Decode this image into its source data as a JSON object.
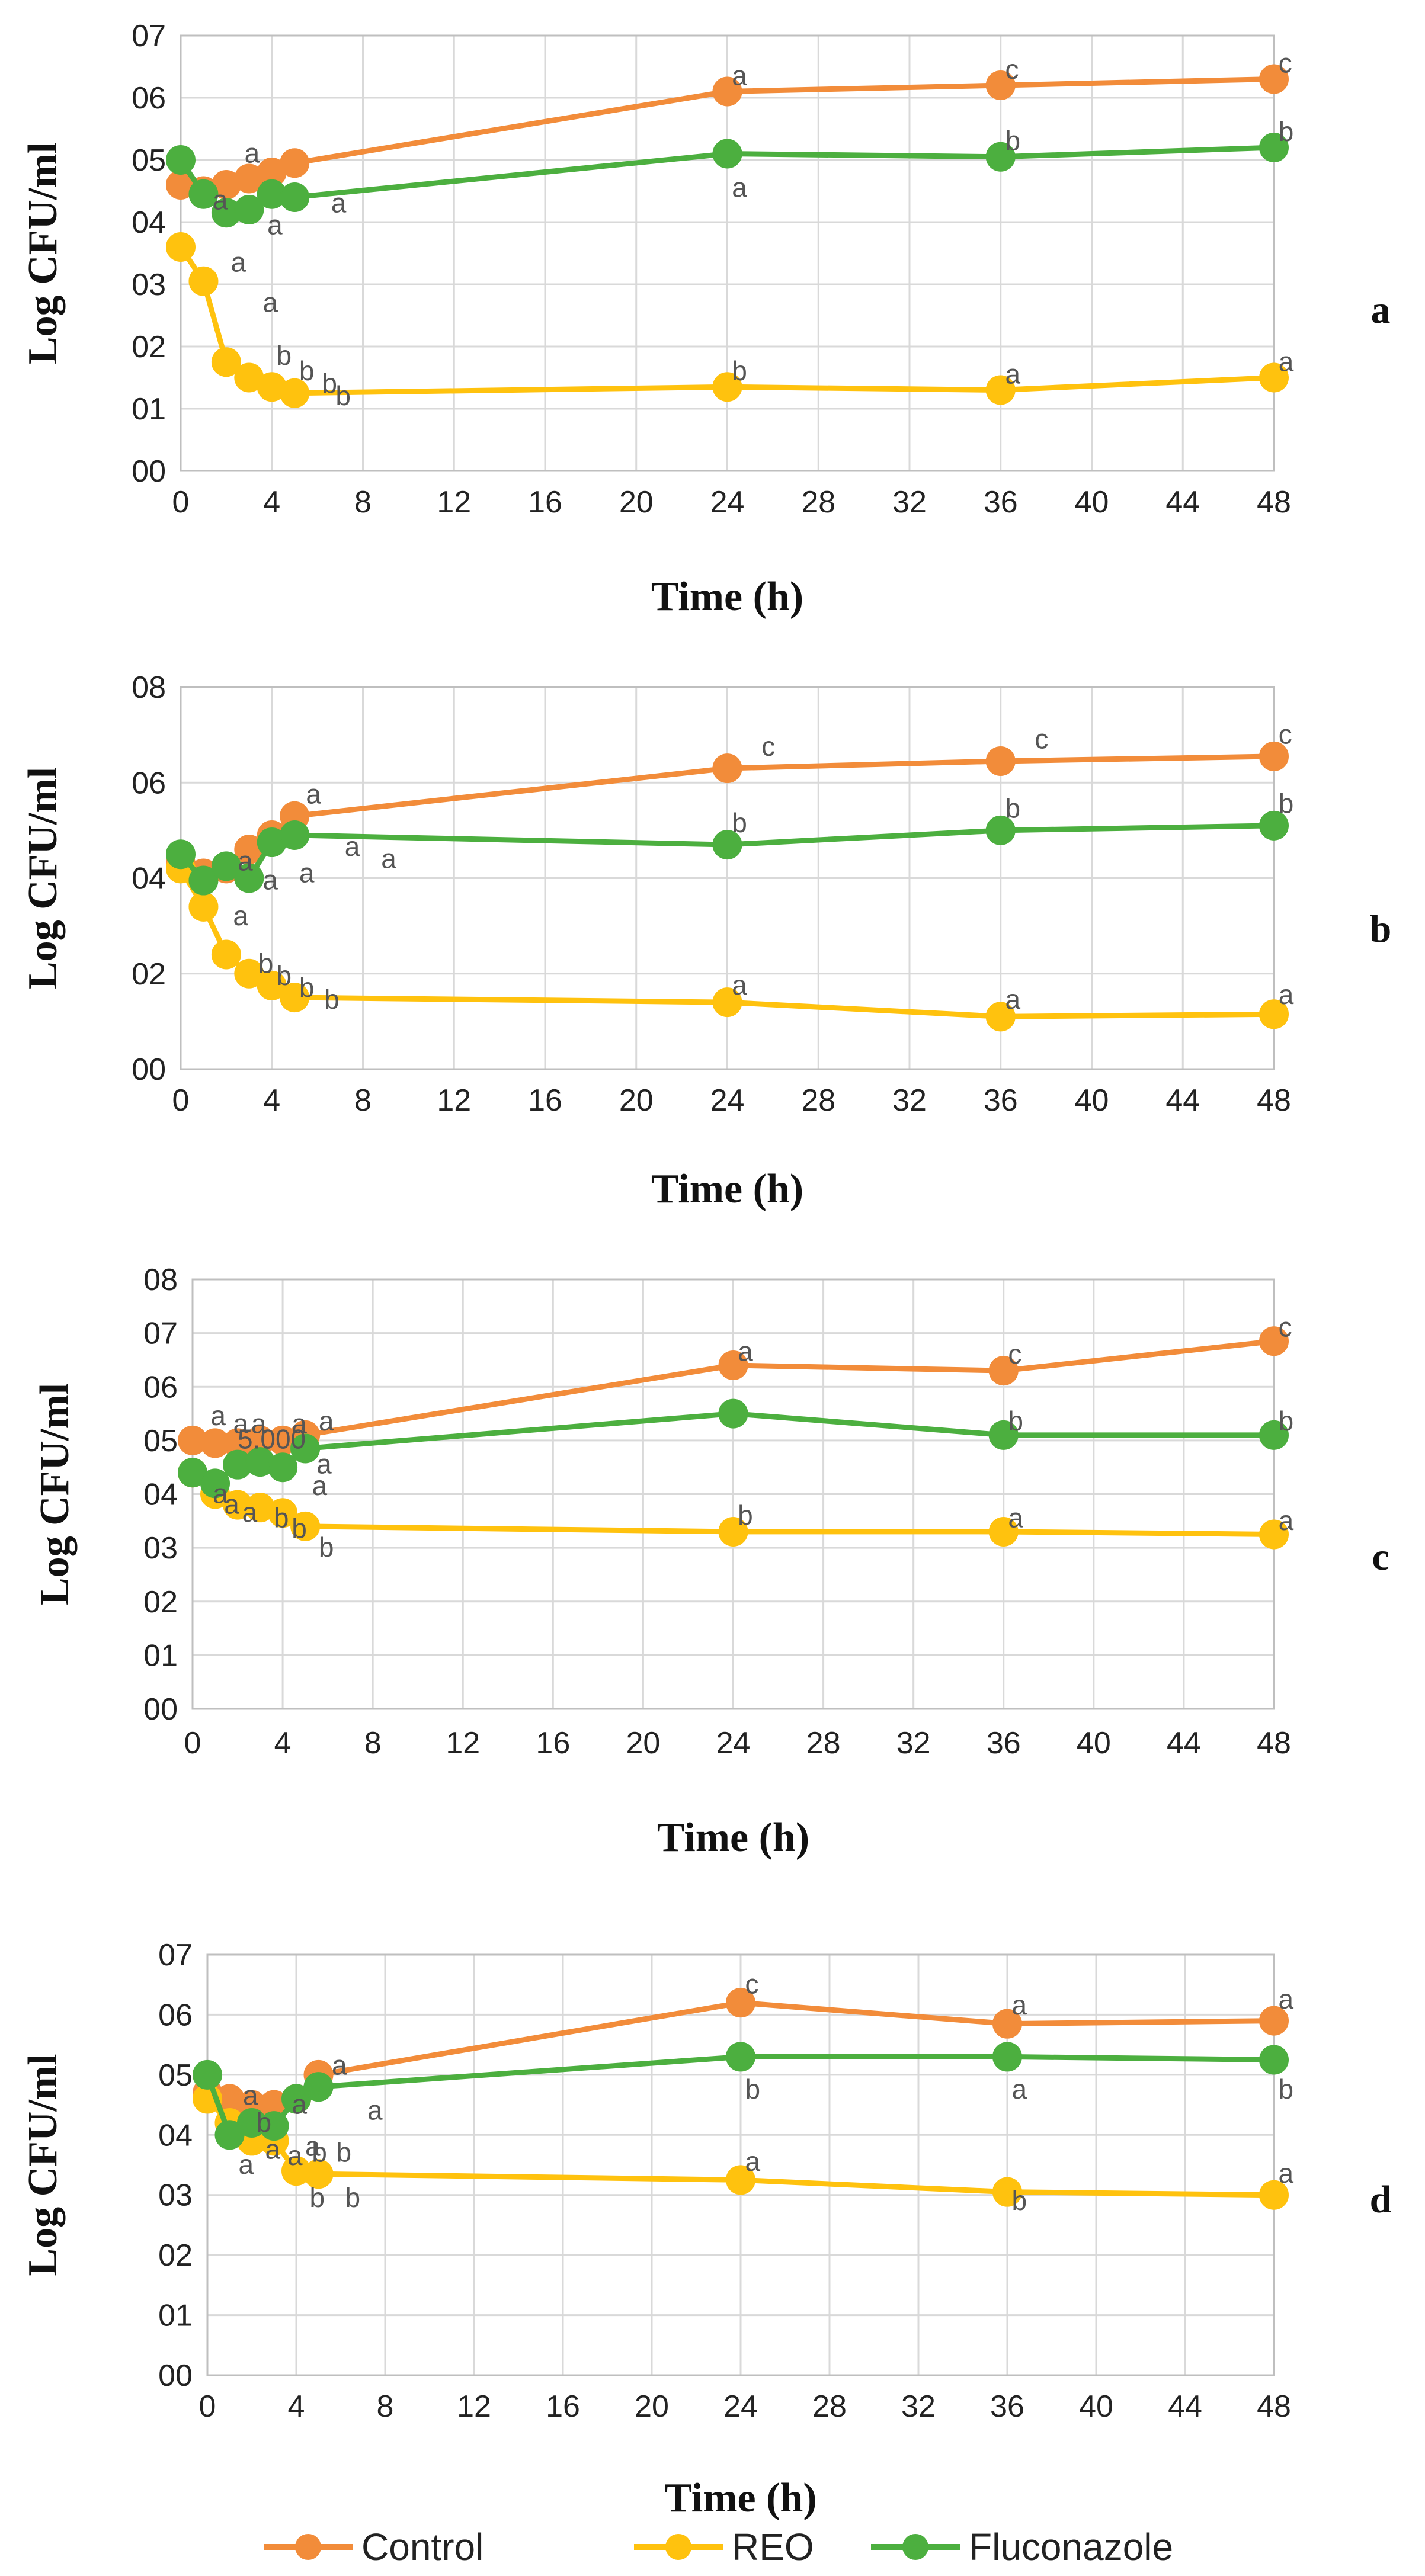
{
  "colors": {
    "Control": "#f28c3a",
    "REO": "#ffc20e",
    "Fluconazole": "#4caf3f",
    "grid": "#d9d9d9",
    "axis": "#bfbfbf"
  },
  "legend": [
    {
      "name": "Control",
      "color": "#f28c3a"
    },
    {
      "name": "REO",
      "color": "#ffc20e"
    },
    {
      "name": "Fluconazole",
      "color": "#4caf3f"
    }
  ],
  "chart_data": [
    {
      "type": "line",
      "panel": "a",
      "xlabel": "Time (h)",
      "ylabel": "Log CFU/ml",
      "xlim": [
        0,
        48
      ],
      "ylim": [
        0,
        7
      ],
      "x_ticks": [
        "0",
        "4",
        "8",
        "12",
        "16",
        "20",
        "24",
        "28",
        "32",
        "36",
        "40",
        "44",
        "48"
      ],
      "y_ticks": [
        "00",
        "01",
        "02",
        "03",
        "04",
        "05",
        "06",
        "07"
      ],
      "series": [
        {
          "name": "Control",
          "x": [
            0,
            1,
            2,
            3,
            4,
            5,
            24,
            36,
            48
          ],
          "y": [
            4.6,
            4.5,
            4.6,
            4.7,
            4.8,
            4.95,
            6.1,
            6.2,
            6.3
          ],
          "labels": [
            {
              "x": 2.8,
              "y": 5.1,
              "t": "a"
            },
            {
              "x": 24.2,
              "y": 6.35,
              "t": "a"
            },
            {
              "x": 36.2,
              "y": 6.45,
              "t": "c"
            },
            {
              "x": 48.2,
              "y": 6.55,
              "t": "c"
            }
          ]
        },
        {
          "name": "REO",
          "x": [
            0,
            1,
            2,
            3,
            4,
            5,
            24,
            36,
            48
          ],
          "y": [
            3.6,
            3.05,
            1.75,
            1.5,
            1.35,
            1.25,
            1.35,
            1.3,
            1.5
          ],
          "labels": [
            {
              "x": 2.2,
              "y": 3.35,
              "t": "a"
            },
            {
              "x": 3.6,
              "y": 2.7,
              "t": "a"
            },
            {
              "x": 4.2,
              "y": 1.85,
              "t": "b"
            },
            {
              "x": 5.2,
              "y": 1.6,
              "t": "b"
            },
            {
              "x": 6.2,
              "y": 1.4,
              "t": "b"
            },
            {
              "x": 6.8,
              "y": 1.2,
              "t": "b"
            },
            {
              "x": 24.2,
              "y": 1.6,
              "t": "b"
            },
            {
              "x": 36.2,
              "y": 1.55,
              "t": "a"
            },
            {
              "x": 48.2,
              "y": 1.75,
              "t": "a"
            }
          ]
        },
        {
          "name": "Fluconazole",
          "x": [
            0,
            1,
            2,
            3,
            4,
            5,
            24,
            36,
            48
          ],
          "y": [
            5.0,
            4.45,
            4.15,
            4.2,
            4.45,
            4.4,
            5.1,
            5.05,
            5.2
          ],
          "labels": [
            {
              "x": 1.4,
              "y": 4.35,
              "t": "a"
            },
            {
              "x": 3.8,
              "y": 3.95,
              "t": "a"
            },
            {
              "x": 6.6,
              "y": 4.3,
              "t": "a"
            },
            {
              "x": 24.2,
              "y": 4.55,
              "t": "a"
            },
            {
              "x": 36.2,
              "y": 5.3,
              "t": "b"
            },
            {
              "x": 48.2,
              "y": 5.45,
              "t": "b"
            }
          ]
        }
      ]
    },
    {
      "type": "line",
      "panel": "b",
      "xlabel": "Time (h)",
      "ylabel": "Log CFU/ml",
      "xlim": [
        0,
        48
      ],
      "ylim": [
        0,
        8
      ],
      "x_ticks": [
        "0",
        "4",
        "8",
        "12",
        "16",
        "20",
        "24",
        "28",
        "32",
        "36",
        "40",
        "44",
        "48"
      ],
      "y_ticks": [
        "00",
        "02",
        "04",
        "06",
        "08"
      ],
      "series": [
        {
          "name": "Control",
          "x": [
            0,
            1,
            2,
            3,
            4,
            5,
            24,
            36,
            48
          ],
          "y": [
            4.3,
            4.1,
            4.2,
            4.6,
            4.9,
            5.3,
            6.3,
            6.45,
            6.55
          ],
          "labels": [
            {
              "x": 5.5,
              "y": 5.75,
              "t": "a"
            },
            {
              "x": 25.5,
              "y": 6.75,
              "t": "c"
            },
            {
              "x": 37.5,
              "y": 6.9,
              "t": "c"
            },
            {
              "x": 48.2,
              "y": 7.0,
              "t": "c"
            }
          ]
        },
        {
          "name": "REO",
          "x": [
            0,
            1,
            2,
            3,
            4,
            5,
            24,
            36,
            48
          ],
          "y": [
            4.2,
            3.4,
            2.4,
            2.0,
            1.75,
            1.5,
            1.4,
            1.1,
            1.15
          ],
          "labels": [
            {
              "x": 2.3,
              "y": 3.2,
              "t": "a"
            },
            {
              "x": 3.4,
              "y": 2.2,
              "t": "b"
            },
            {
              "x": 4.2,
              "y": 1.95,
              "t": "b"
            },
            {
              "x": 5.2,
              "y": 1.7,
              "t": "b"
            },
            {
              "x": 6.3,
              "y": 1.45,
              "t": "b"
            },
            {
              "x": 24.2,
              "y": 1.75,
              "t": "a"
            },
            {
              "x": 36.2,
              "y": 1.45,
              "t": "a"
            },
            {
              "x": 48.2,
              "y": 1.55,
              "t": "a"
            }
          ]
        },
        {
          "name": "Fluconazole",
          "x": [
            0,
            1,
            2,
            3,
            4,
            5,
            24,
            36,
            48
          ],
          "y": [
            4.5,
            3.95,
            4.25,
            4.0,
            4.75,
            4.9,
            4.7,
            5.0,
            5.1
          ],
          "labels": [
            {
              "x": 2.5,
              "y": 4.35,
              "t": "a"
            },
            {
              "x": 3.6,
              "y": 3.95,
              "t": "a"
            },
            {
              "x": 5.2,
              "y": 4.1,
              "t": "a"
            },
            {
              "x": 7.2,
              "y": 4.65,
              "t": "a"
            },
            {
              "x": 8.8,
              "y": 4.4,
              "t": "a"
            },
            {
              "x": 24.2,
              "y": 5.15,
              "t": "b"
            },
            {
              "x": 36.2,
              "y": 5.45,
              "t": "b"
            },
            {
              "x": 48.2,
              "y": 5.55,
              "t": "b"
            }
          ]
        }
      ]
    },
    {
      "type": "line",
      "panel": "c",
      "xlabel": "Time (h)",
      "ylabel": "Log CFU/ml",
      "xlim": [
        0,
        48
      ],
      "ylim": [
        0,
        8
      ],
      "x_ticks": [
        "0",
        "4",
        "8",
        "12",
        "16",
        "20",
        "24",
        "28",
        "32",
        "36",
        "40",
        "44",
        "48"
      ],
      "y_ticks": [
        "00",
        "01",
        "02",
        "03",
        "04",
        "05",
        "06",
        "07",
        "08"
      ],
      "annotation": "5.000",
      "series": [
        {
          "name": "Control",
          "x": [
            0,
            1,
            2,
            3,
            4,
            5,
            24,
            36,
            48
          ],
          "y": [
            5.0,
            4.95,
            4.95,
            5.0,
            5.0,
            5.1,
            6.4,
            6.3,
            6.85
          ],
          "labels": [
            {
              "x": 0.8,
              "y": 5.45,
              "t": "a"
            },
            {
              "x": 1.8,
              "y": 5.3,
              "t": "a"
            },
            {
              "x": 2.6,
              "y": 5.3,
              "t": "a"
            },
            {
              "x": 4.4,
              "y": 5.3,
              "t": "a"
            },
            {
              "x": 5.6,
              "y": 5.35,
              "t": "a"
            },
            {
              "x": 24.2,
              "y": 6.65,
              "t": "a"
            },
            {
              "x": 36.2,
              "y": 6.6,
              "t": "c"
            },
            {
              "x": 48.2,
              "y": 7.1,
              "t": "c"
            }
          ]
        },
        {
          "name": "REO",
          "x": [
            0,
            1,
            2,
            3,
            4,
            5,
            24,
            36,
            48
          ],
          "y": [
            4.4,
            4.0,
            3.8,
            3.75,
            3.65,
            3.4,
            3.3,
            3.3,
            3.25
          ],
          "labels": [
            {
              "x": 2.2,
              "y": 3.65,
              "t": "a"
            },
            {
              "x": 3.6,
              "y": 3.55,
              "t": "b"
            },
            {
              "x": 4.4,
              "y": 3.35,
              "t": "b"
            },
            {
              "x": 5.6,
              "y": 3.0,
              "t": "b"
            },
            {
              "x": 24.2,
              "y": 3.6,
              "t": "b"
            },
            {
              "x": 36.2,
              "y": 3.55,
              "t": "a"
            },
            {
              "x": 48.2,
              "y": 3.5,
              "t": "a"
            }
          ]
        },
        {
          "name": "Fluconazole",
          "x": [
            0,
            1,
            2,
            3,
            4,
            5,
            24,
            36,
            48
          ],
          "y": [
            4.4,
            4.2,
            4.55,
            4.6,
            4.5,
            4.85,
            5.5,
            5.1,
            5.1
          ],
          "labels": [
            {
              "x": 0.9,
              "y": 4.0,
              "t": "a"
            },
            {
              "x": 1.4,
              "y": 3.8,
              "t": "a"
            },
            {
              "x": 5.3,
              "y": 4.15,
              "t": "a"
            },
            {
              "x": 5.5,
              "y": 4.55,
              "t": "a"
            },
            {
              "x": 36.2,
              "y": 5.35,
              "t": "b"
            },
            {
              "x": 48.2,
              "y": 5.35,
              "t": "b"
            }
          ]
        }
      ]
    },
    {
      "type": "line",
      "panel": "d",
      "xlabel": "Time (h)",
      "ylabel": "Log CFU/ml",
      "xlim": [
        0,
        48
      ],
      "ylim": [
        0,
        7
      ],
      "x_ticks": [
        "0",
        "4",
        "8",
        "12",
        "16",
        "20",
        "24",
        "28",
        "32",
        "36",
        "40",
        "44",
        "48"
      ],
      "y_ticks": [
        "00",
        "01",
        "02",
        "03",
        "04",
        "05",
        "06",
        "07"
      ],
      "series": [
        {
          "name": "Control",
          "x": [
            0,
            1,
            2,
            3,
            4,
            5,
            24,
            36,
            48
          ],
          "y": [
            4.7,
            4.6,
            4.5,
            4.5,
            4.6,
            5.0,
            6.2,
            5.85,
            5.9
          ],
          "labels": [
            {
              "x": 1.6,
              "y": 4.65,
              "t": "a"
            },
            {
              "x": 3.6,
              "y": 4.65,
              "t": "a"
            },
            {
              "x": 4.2,
              "y": 4.75,
              "t": "a"
            },
            {
              "x": 5.6,
              "y": 5.15,
              "t": "a"
            },
            {
              "x": 24.2,
              "y": 6.5,
              "t": "c"
            },
            {
              "x": 36.2,
              "y": 6.15,
              "t": "a"
            },
            {
              "x": 48.2,
              "y": 6.25,
              "t": "a"
            }
          ]
        },
        {
          "name": "REO",
          "x": [
            0,
            1,
            2,
            3,
            4,
            5,
            24,
            36,
            48
          ],
          "y": [
            4.6,
            4.2,
            3.9,
            3.9,
            3.4,
            3.35,
            3.25,
            3.05,
            3.0
          ],
          "labels": [
            {
              "x": 2.0,
              "y": 4.15,
              "t": "a"
            },
            {
              "x": 2.6,
              "y": 3.75,
              "t": "a"
            },
            {
              "x": 3.6,
              "y": 3.65,
              "t": "a"
            },
            {
              "x": 4.4,
              "y": 3.8,
              "t": "a"
            },
            {
              "x": 4.7,
              "y": 3.7,
              "t": "b"
            },
            {
              "x": 5.8,
              "y": 3.7,
              "t": "b"
            },
            {
              "x": 4.6,
              "y": 2.95,
              "t": "b"
            },
            {
              "x": 6.2,
              "y": 2.95,
              "t": "b"
            },
            {
              "x": 24.2,
              "y": 3.55,
              "t": "a"
            },
            {
              "x": 36.2,
              "y": 2.9,
              "t": "b"
            },
            {
              "x": 48.2,
              "y": 3.35,
              "t": "a"
            }
          ]
        },
        {
          "name": "Fluconazole",
          "x": [
            0,
            1,
            2,
            3,
            4,
            5,
            24,
            36,
            48
          ],
          "y": [
            5.0,
            4.0,
            4.2,
            4.15,
            4.6,
            4.8,
            5.3,
            5.3,
            5.25
          ],
          "labels": [
            {
              "x": 1.4,
              "y": 3.5,
              "t": "a"
            },
            {
              "x": 2.2,
              "y": 4.2,
              "t": "b"
            },
            {
              "x": 3.8,
              "y": 4.5,
              "t": "a"
            },
            {
              "x": 7.2,
              "y": 4.4,
              "t": "a"
            },
            {
              "x": 24.2,
              "y": 4.75,
              "t": "b"
            },
            {
              "x": 36.2,
              "y": 4.75,
              "t": "a"
            },
            {
              "x": 48.2,
              "y": 4.75,
              "t": "b"
            }
          ]
        }
      ]
    }
  ]
}
